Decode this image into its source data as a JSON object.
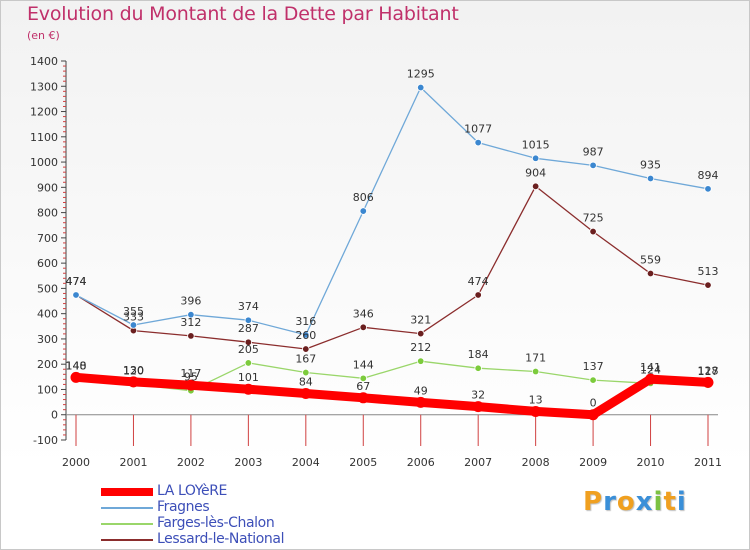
{
  "chart_data": {
    "type": "line",
    "title": "Evolution du Montant de la Dette par Habitant",
    "subtitle": "(en €)",
    "x": [
      "2000",
      "2001",
      "2002",
      "2003",
      "2004",
      "2005",
      "2006",
      "2007",
      "2008",
      "2009",
      "2010",
      "2011"
    ],
    "ylim": [
      -100,
      1400
    ],
    "yticks": [
      -100,
      0,
      100,
      200,
      300,
      400,
      500,
      600,
      700,
      800,
      900,
      1000,
      1100,
      1200,
      1300,
      1400
    ],
    "grid": false,
    "legend": "bottom-left",
    "series": [
      {
        "name": "LA LOYèRE",
        "color": "#ff0000",
        "values": [
          148,
          130,
          117,
          101,
          84,
          67,
          49,
          32,
          13,
          0,
          141,
          128
        ],
        "labels": [
          "148",
          "130",
          "117",
          "101",
          "84",
          "67",
          "49",
          "32",
          "13",
          "0",
          "141",
          "128"
        ]
      },
      {
        "name": "Fragnes",
        "color": "#6fa8d8",
        "point_color": "#3b87d0",
        "values": [
          474,
          355,
          396,
          374,
          316,
          806,
          1295,
          1077,
          1015,
          987,
          935,
          894
        ],
        "labels": [
          "474",
          "355",
          "396",
          "374",
          "316",
          "806",
          "1295",
          "1077",
          "1015",
          "987",
          "935",
          "894"
        ]
      },
      {
        "name": "Farges-lès-Chalon",
        "color": "#9ad66a",
        "point_color": "#7ccb3c",
        "values": [
          140,
          120,
          95,
          205,
          167,
          144,
          212,
          184,
          171,
          137,
          124,
          117
        ],
        "labels": [
          "140",
          "120",
          "95",
          "205",
          "167",
          "144",
          "212",
          "184",
          "171",
          "137",
          "124",
          "117"
        ]
      },
      {
        "name": "Lessard-le-National",
        "color": "#8b2d2d",
        "point_color": "#6b1f1f",
        "values": [
          474,
          333,
          312,
          287,
          260,
          346,
          321,
          474,
          904,
          725,
          559,
          513
        ],
        "labels": [
          "474",
          "333",
          "312",
          "287",
          "260",
          "346",
          "321",
          "474",
          "904",
          "725",
          "559",
          "513"
        ]
      }
    ]
  },
  "logo": {
    "letters": [
      "P",
      "r",
      "o",
      "x",
      "i",
      "t",
      "i"
    ],
    "colors": [
      "#f0a020",
      "#3a8fd8",
      "#f0a020",
      "#3a8fd8",
      "#7cc242",
      "#f0a020",
      "#3a8fd8"
    ]
  }
}
